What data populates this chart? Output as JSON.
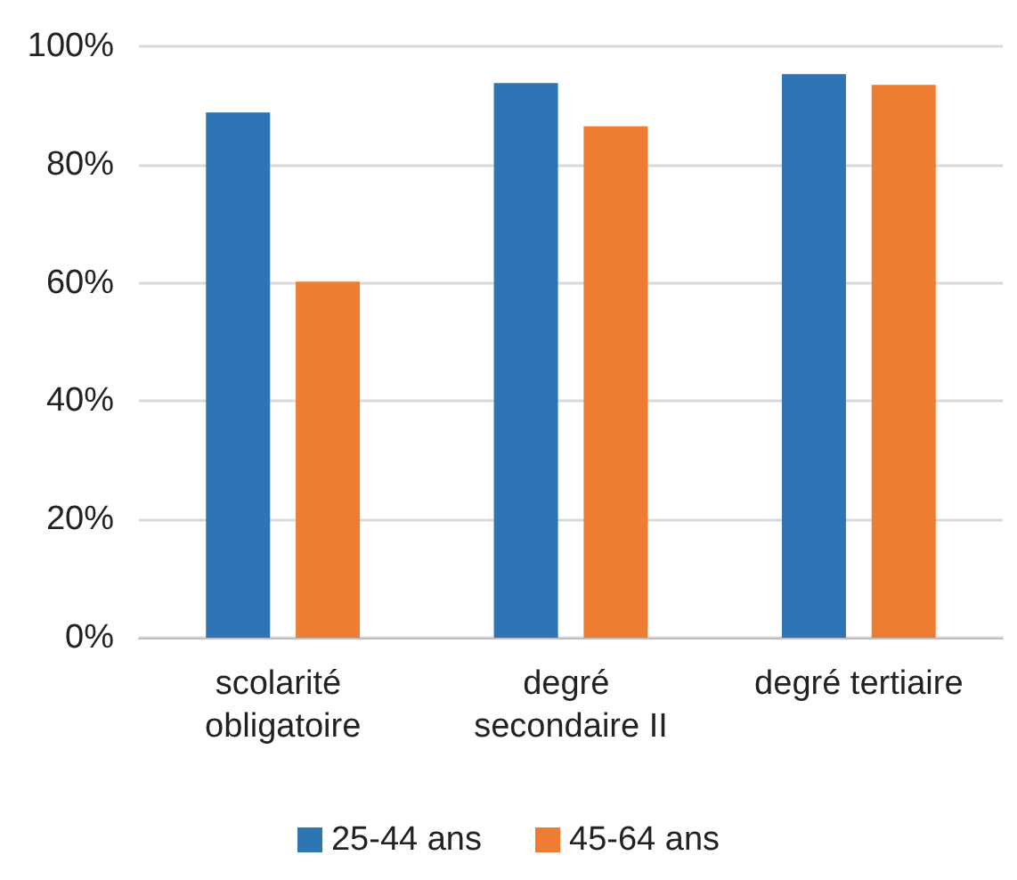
{
  "chart_data": {
    "type": "bar",
    "categories": [
      "scolarité obligatoire",
      "degré secondaire II",
      "degré tertiaire"
    ],
    "series": [
      {
        "name": "25-44 ans",
        "color": "#2e75b6",
        "values": [
          88.8,
          93.8,
          95.3
        ]
      },
      {
        "name": "45-64 ans",
        "color": "#ed7d31",
        "values": [
          60.2,
          86.5,
          93.5
        ]
      }
    ],
    "ylim": [
      0,
      100
    ],
    "yticks": [
      {
        "value": 0,
        "label": "0%"
      },
      {
        "value": 20,
        "label": "20%"
      },
      {
        "value": 40,
        "label": "40%"
      },
      {
        "value": 60,
        "label": "60%"
      },
      {
        "value": 80,
        "label": "80%"
      },
      {
        "value": 100,
        "label": "100%"
      }
    ],
    "grid": "y",
    "legend": "bottom"
  }
}
